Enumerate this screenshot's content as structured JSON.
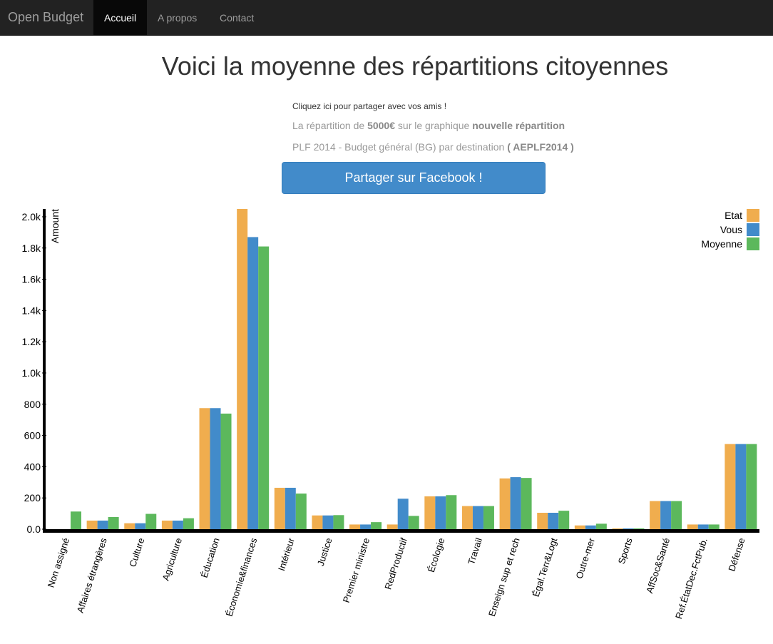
{
  "nav": {
    "brand": "Open Budget",
    "items": [
      {
        "label": "Accueil",
        "active": true
      },
      {
        "label": "A propos",
        "active": false
      },
      {
        "label": "Contact",
        "active": false
      }
    ]
  },
  "page": {
    "title": "Voici la moyenne des répartitions citoyennes",
    "share_link": "Cliquez ici pour partager avec vos amis !",
    "line1": {
      "prefix": "La répartition de ",
      "amount": "5000€",
      "middle": " sur le graphique ",
      "graph": "nouvelle répartition"
    },
    "line2": {
      "prefix": "PLF 2014 - Budget général (BG) par destination ",
      "code": "( AEPLF2014 )"
    },
    "facebook_button": "Partager sur Facebook !"
  },
  "colors": {
    "etat": "#f0ad4e",
    "vous": "#428bca",
    "moyenne": "#5cb85c",
    "navbar": "#222222"
  },
  "chart_data": {
    "type": "bar",
    "ylabel": "Amount",
    "ylim": [
      0,
      2050
    ],
    "yticks": [
      "0.0",
      "200",
      "400",
      "600",
      "800",
      "1.0k",
      "1.2k",
      "1.4k",
      "1.6k",
      "1.8k",
      "2.0k"
    ],
    "ytick_values": [
      0,
      200,
      400,
      600,
      800,
      1000,
      1200,
      1400,
      1600,
      1800,
      2000
    ],
    "legend_position": "top-right",
    "categories": [
      "Non assigné",
      "Affaires étrangères",
      "Culture",
      "Agriculture",
      "Éducation",
      "Économie&finances",
      "Intérieur",
      "Justice",
      "Premier ministre",
      "RedProductif",
      "Écologie",
      "Travail",
      "Enseign sup et rech",
      "Égal.Terr&Logt",
      "Outre-mer",
      "Sports",
      "AffSoc&Santé",
      "Ref.ÉtatDec.FctPub.",
      "Défense"
    ],
    "series": [
      {
        "name": "Etat",
        "color": "#f0ad4e",
        "values": [
          0,
          55,
          38,
          55,
          775,
          2050,
          265,
          88,
          30,
          30,
          210,
          148,
          325,
          105,
          24,
          5,
          180,
          30,
          545
        ]
      },
      {
        "name": "Vous",
        "color": "#428bca",
        "values": [
          0,
          55,
          38,
          55,
          775,
          1870,
          265,
          88,
          30,
          195,
          210,
          148,
          333,
          105,
          24,
          5,
          180,
          30,
          545
        ]
      },
      {
        "name": "Moyenne",
        "color": "#5cb85c",
        "values": [
          113,
          78,
          98,
          70,
          740,
          1810,
          228,
          90,
          45,
          85,
          218,
          148,
          328,
          118,
          35,
          5,
          180,
          30,
          545
        ]
      }
    ]
  }
}
